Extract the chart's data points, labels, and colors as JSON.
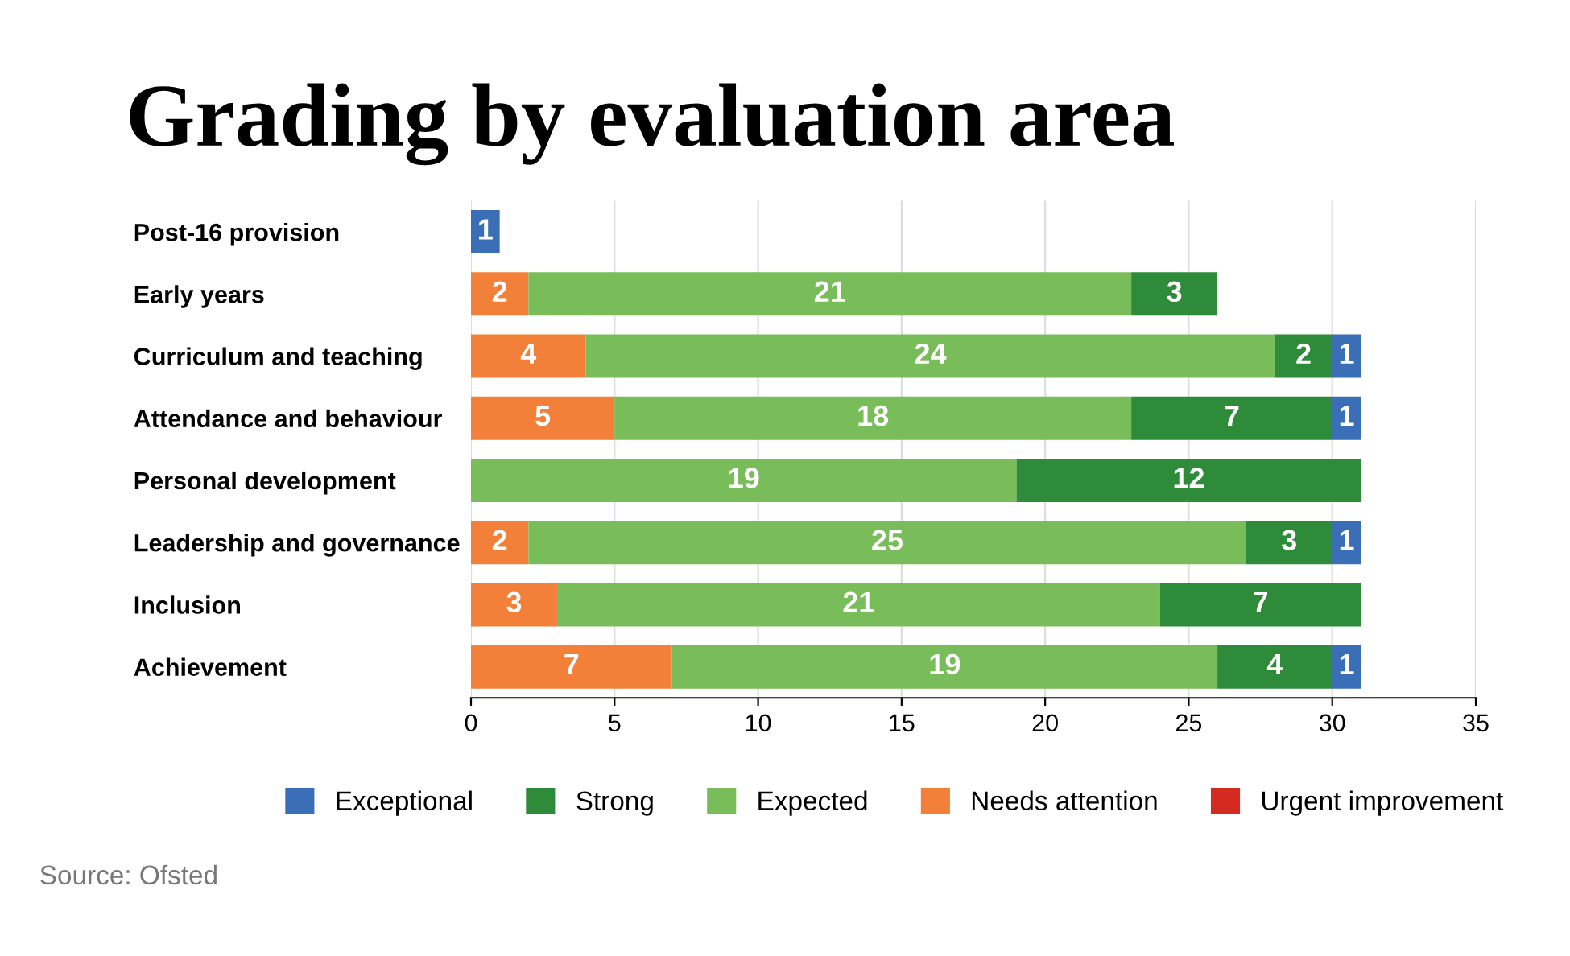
{
  "chart_data": {
    "type": "bar",
    "orientation": "horizontal",
    "stacked": true,
    "title": "Grading by evaluation area",
    "categories": [
      "Post-16 provision",
      "Early years",
      "Curriculum and teaching",
      "Attendance and behaviour",
      "Personal development",
      "Leadership and governance",
      "Inclusion",
      "Achievement"
    ],
    "series": [
      {
        "name": "Urgent improvement",
        "color": "#d42a20",
        "values": [
          null,
          null,
          null,
          null,
          null,
          null,
          null,
          null
        ]
      },
      {
        "name": "Needs attention",
        "color": "#f28038",
        "values": [
          null,
          2,
          4,
          5,
          null,
          2,
          3,
          7
        ]
      },
      {
        "name": "Expected",
        "color": "#78bd5a",
        "values": [
          null,
          21,
          24,
          18,
          19,
          25,
          21,
          19
        ]
      },
      {
        "name": "Strong",
        "color": "#2e8b3a",
        "values": [
          null,
          3,
          2,
          7,
          12,
          3,
          7,
          4
        ]
      },
      {
        "name": "Exceptional",
        "color": "#3a6fb7",
        "values": [
          1,
          null,
          1,
          1,
          null,
          1,
          null,
          1
        ]
      }
    ],
    "data_labels": true,
    "xlim": [
      0,
      35
    ],
    "xticks": [
      0,
      5,
      10,
      15,
      20,
      25,
      30,
      35
    ],
    "grid": "x",
    "legend": "bottom",
    "annotations": [
      "Source: Ofsted"
    ]
  }
}
